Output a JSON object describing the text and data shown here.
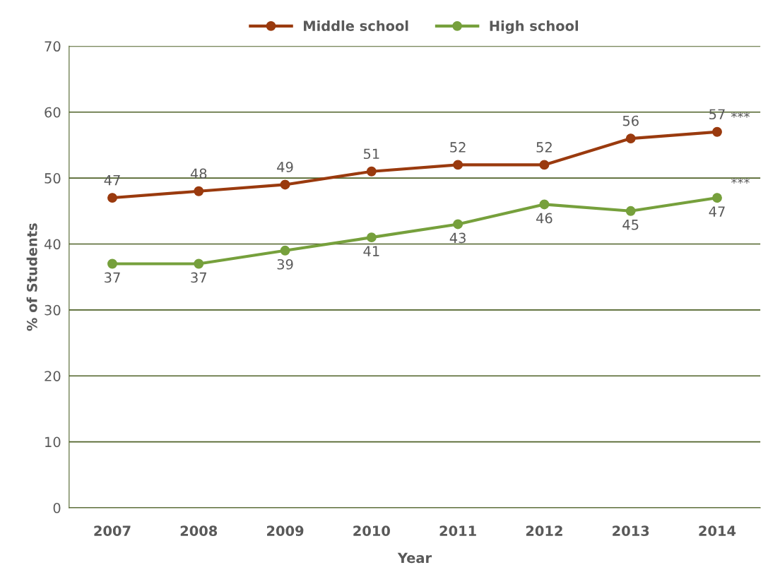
{
  "chart_data": {
    "type": "line",
    "xlabel": "Year",
    "ylabel": "% of Students",
    "categories": [
      "2007",
      "2008",
      "2009",
      "2010",
      "2011",
      "2012",
      "2013",
      "2014"
    ],
    "series": [
      {
        "name": "Middle school",
        "color": "#9a3a0e",
        "values": [
          47,
          48,
          49,
          51,
          52,
          52,
          56,
          57
        ]
      },
      {
        "name": "High school",
        "color": "#76a03c",
        "values": [
          37,
          37,
          39,
          41,
          43,
          46,
          45,
          47
        ]
      }
    ],
    "ylim": [
      0,
      70
    ],
    "yticks": [
      0,
      10,
      20,
      30,
      40,
      50,
      60,
      70
    ],
    "grid": "y",
    "legend": "top",
    "marker": "circle",
    "line_style": "solid",
    "data_labels": true,
    "annotations": [
      {
        "text": "***",
        "x": "2014",
        "y": 57
      },
      {
        "text": "***",
        "x": "2014",
        "y": 47
      }
    ]
  }
}
